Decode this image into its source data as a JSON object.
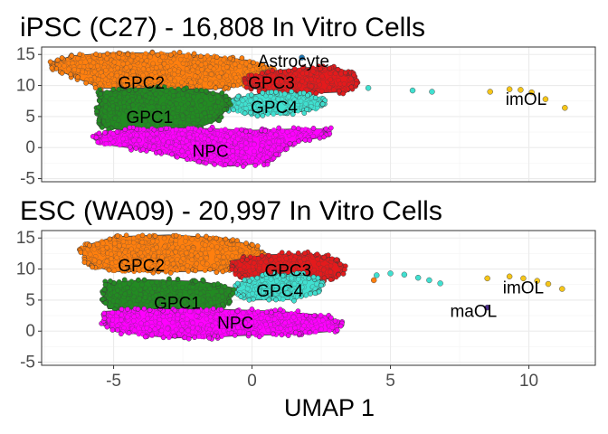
{
  "chart_data": {
    "type": "scatter",
    "xlabel": "UMAP 1",
    "xlim": [
      -7.6,
      12.4
    ],
    "x_ticks": [
      -5,
      0,
      5,
      10
    ],
    "ylim": [
      -5.5,
      16.2
    ],
    "y_ticks": [
      -5,
      0,
      5,
      10,
      15
    ],
    "grid": true,
    "cluster_colors": {
      "GPC2": "#ff7f0e",
      "GPC3": "#e41a1c",
      "GPC4": "#40e0d0",
      "GPC1": "#228b22",
      "NPC": "#ff00ff",
      "Astrocyte": "#1f77b4",
      "imOL": "#f5c518",
      "maOL": "#4b2c8c"
    },
    "panels": [
      {
        "title": "iPSC (C27) - 16,808 In Vitro Cells",
        "clusters": [
          {
            "name": "GPC2",
            "color": "#ff7f0e",
            "label": {
              "text": "GPC2",
              "x": -4.0,
              "y": 10.5
            },
            "shape": [
              [
                -7.3,
                13.6
              ],
              [
                -6.5,
                14.8
              ],
              [
                -5.0,
                15.3
              ],
              [
                -3.0,
                15.2
              ],
              [
                -1.5,
                14.8
              ],
              [
                0.0,
                14.0
              ],
              [
                0.8,
                12.5
              ],
              [
                0.5,
                11.2
              ],
              [
                -0.5,
                9.8
              ],
              [
                -2.0,
                9.2
              ],
              [
                -4.0,
                9.4
              ],
              [
                -5.5,
                9.6
              ],
              [
                -6.5,
                11.5
              ],
              [
                -7.2,
                12.8
              ]
            ]
          },
          {
            "name": "GPC3",
            "color": "#e41a1c",
            "label": {
              "text": "GPC3",
              "x": 0.7,
              "y": 10.5
            },
            "shape": [
              [
                -0.3,
                11.2
              ],
              [
                0.8,
                12.4
              ],
              [
                2.0,
                12.9
              ],
              [
                3.0,
                13.0
              ],
              [
                3.6,
                12.0
              ],
              [
                3.8,
                10.5
              ],
              [
                3.5,
                9.0
              ],
              [
                2.0,
                8.7
              ],
              [
                0.8,
                9.0
              ],
              [
                -0.1,
                9.6
              ]
            ]
          },
          {
            "name": "GPC4",
            "color": "#40e0d0",
            "label": {
              "text": "GPC4",
              "x": 0.8,
              "y": 6.6
            },
            "shape": [
              [
                -1.0,
                7.7
              ],
              [
                0.3,
                8.7
              ],
              [
                1.8,
                8.8
              ],
              [
                2.7,
                7.8
              ],
              [
                2.4,
                6.2
              ],
              [
                1.2,
                5.4
              ],
              [
                0.0,
                5.3
              ],
              [
                -1.0,
                6.3
              ]
            ]
          },
          {
            "name": "GPC1",
            "color": "#228b22",
            "label": {
              "text": "GPC1",
              "x": -3.7,
              "y": 5.0
            },
            "shape": [
              [
                -5.5,
                9.0
              ],
              [
                -4.0,
                9.6
              ],
              [
                -2.0,
                9.4
              ],
              [
                -1.0,
                8.6
              ],
              [
                -0.8,
                7.0
              ],
              [
                -1.2,
                4.5
              ],
              [
                -2.2,
                2.7
              ],
              [
                -4.0,
                2.5
              ],
              [
                -5.5,
                3.3
              ],
              [
                -5.6,
                5.5
              ],
              [
                -5.5,
                7.8
              ]
            ]
          },
          {
            "name": "NPC",
            "color": "#ff00ff",
            "label": {
              "text": "NPC",
              "x": -1.5,
              "y": -0.5
            },
            "shape": [
              [
                -5.7,
                2.0
              ],
              [
                -4.5,
                3.0
              ],
              [
                -2.5,
                3.2
              ],
              [
                0.0,
                2.8
              ],
              [
                1.5,
                3.0
              ],
              [
                2.8,
                3.0
              ],
              [
                2.7,
                1.8
              ],
              [
                1.5,
                0.8
              ],
              [
                1.0,
                -1.0
              ],
              [
                0.5,
                -2.5
              ],
              [
                -0.8,
                -3.0
              ],
              [
                -2.0,
                -2.3
              ],
              [
                -3.5,
                -0.6
              ],
              [
                -5.5,
                0.6
              ]
            ]
          },
          {
            "name": "Astrocyte",
            "color": "#1f77b4",
            "label": {
              "text": "Astrocyte",
              "x": 1.5,
              "y": 14.0
            },
            "shape": []
          }
        ],
        "outliers": [
          {
            "x": 5.8,
            "y": 9.2,
            "color": "#40e0d0"
          },
          {
            "x": 6.5,
            "y": 9.0,
            "color": "#40e0d0"
          },
          {
            "x": 4.2,
            "y": 9.6,
            "color": "#40e0d0"
          },
          {
            "x": 1.8,
            "y": 14.5,
            "color": "#1f77b4"
          },
          {
            "x": 8.6,
            "y": 9.0,
            "color": "#f5c518"
          },
          {
            "x": 9.3,
            "y": 9.4,
            "color": "#f5c518"
          },
          {
            "x": 9.7,
            "y": 9.3,
            "color": "#f5c518"
          },
          {
            "x": 10.1,
            "y": 8.9,
            "color": "#f5c518"
          },
          {
            "x": 10.6,
            "y": 7.8,
            "color": "#f5c518"
          },
          {
            "x": 11.3,
            "y": 6.4,
            "color": "#f5c518"
          }
        ],
        "extra_labels": [
          {
            "text": "imOL",
            "x": 9.9,
            "y": 7.9
          }
        ]
      },
      {
        "title": "ESC (WA09) - 20,997 In Vitro Cells",
        "clusters": [
          {
            "name": "GPC2",
            "color": "#ff7f0e",
            "label": {
              "text": "GPC2",
              "x": -4.0,
              "y": 10.7
            },
            "shape": [
              [
                -6.2,
                13.5
              ],
              [
                -5.0,
                15.2
              ],
              [
                -3.0,
                15.5
              ],
              [
                -1.0,
                15.0
              ],
              [
                0.0,
                13.8
              ],
              [
                0.5,
                12.5
              ],
              [
                0.0,
                11.0
              ],
              [
                -1.0,
                9.8
              ],
              [
                -3.0,
                9.5
              ],
              [
                -5.0,
                9.6
              ],
              [
                -6.0,
                10.8
              ]
            ]
          },
          {
            "name": "GPC3",
            "color": "#e41a1c",
            "label": {
              "text": "GPC3",
              "x": 1.3,
              "y": 9.9
            },
            "shape": [
              [
                -0.8,
                11.3
              ],
              [
                0.5,
                12.3
              ],
              [
                2.0,
                12.5
              ],
              [
                3.0,
                11.8
              ],
              [
                3.4,
                10.0
              ],
              [
                3.0,
                8.5
              ],
              [
                1.8,
                8.0
              ],
              [
                0.5,
                8.2
              ],
              [
                -0.6,
                9.0
              ]
            ]
          },
          {
            "name": "GPC4",
            "color": "#40e0d0",
            "label": {
              "text": "GPC4",
              "x": 1.0,
              "y": 6.6
            },
            "shape": [
              [
                -0.5,
                7.8
              ],
              [
                0.4,
                9.0
              ],
              [
                1.8,
                9.2
              ],
              [
                2.6,
                8.0
              ],
              [
                2.4,
                6.2
              ],
              [
                1.5,
                5.1
              ],
              [
                0.0,
                5.0
              ],
              [
                -0.6,
                6.0
              ]
            ]
          },
          {
            "name": "GPC1",
            "color": "#228b22",
            "label": {
              "text": "GPC1",
              "x": -2.7,
              "y": 4.6
            },
            "shape": [
              [
                -5.3,
                7.8
              ],
              [
                -3.8,
                8.3
              ],
              [
                -1.8,
                8.0
              ],
              [
                -0.7,
                7.0
              ],
              [
                -0.8,
                4.5
              ],
              [
                -1.5,
                3.2
              ],
              [
                -3.5,
                3.2
              ],
              [
                -5.2,
                3.6
              ],
              [
                -5.4,
                5.8
              ]
            ]
          },
          {
            "name": "NPC",
            "color": "#ff00ff",
            "label": {
              "text": "NPC",
              "x": -0.6,
              "y": 1.4
            },
            "shape": [
              [
                -5.3,
                3.2
              ],
              [
                -3.5,
                3.6
              ],
              [
                -1.0,
                3.5
              ],
              [
                1.0,
                3.2
              ],
              [
                2.7,
                2.5
              ],
              [
                3.3,
                1.2
              ],
              [
                3.0,
                0.0
              ],
              [
                1.5,
                -0.5
              ],
              [
                -0.3,
                -0.7
              ],
              [
                -1.5,
                -1.0
              ],
              [
                -3.0,
                -1.1
              ],
              [
                -5.0,
                0.0
              ],
              [
                -5.4,
                1.5
              ]
            ]
          }
        ],
        "outliers": [
          {
            "x": 4.5,
            "y": 9.0,
            "color": "#40e0d0"
          },
          {
            "x": 5.0,
            "y": 9.3,
            "color": "#40e0d0"
          },
          {
            "x": 5.5,
            "y": 9.1,
            "color": "#40e0d0"
          },
          {
            "x": 6.0,
            "y": 8.6,
            "color": "#40e0d0"
          },
          {
            "x": 6.4,
            "y": 8.2,
            "color": "#40e0d0"
          },
          {
            "x": 6.8,
            "y": 7.7,
            "color": "#40e0d0"
          },
          {
            "x": 4.4,
            "y": 8.2,
            "color": "#ff7f0e"
          },
          {
            "x": 8.5,
            "y": 8.5,
            "color": "#f5c518"
          },
          {
            "x": 9.3,
            "y": 8.8,
            "color": "#f5c518"
          },
          {
            "x": 9.8,
            "y": 8.5,
            "color": "#f5c518"
          },
          {
            "x": 10.3,
            "y": 8.1,
            "color": "#f5c518"
          },
          {
            "x": 10.7,
            "y": 7.6,
            "color": "#f5c518"
          },
          {
            "x": 11.2,
            "y": 6.8,
            "color": "#f5c518"
          },
          {
            "x": 8.5,
            "y": 3.8,
            "color": "#4b2c8c"
          }
        ],
        "extra_labels": [
          {
            "text": "imOL",
            "x": 9.8,
            "y": 7.1
          },
          {
            "text": "maOL",
            "x": 8.0,
            "y": 3.3
          }
        ]
      }
    ]
  }
}
